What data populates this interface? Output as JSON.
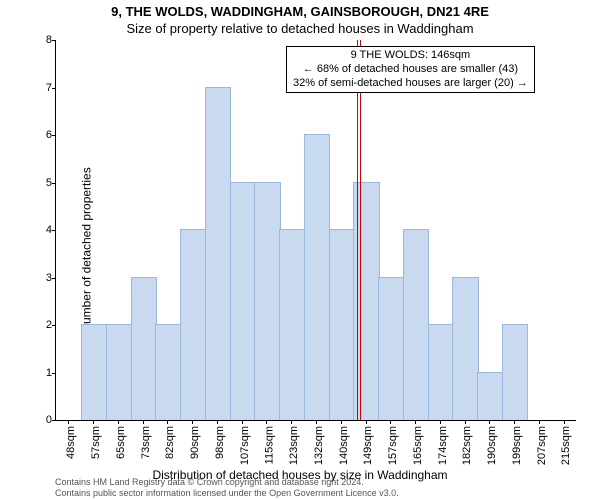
{
  "title_main": "9, THE WOLDS, WADDINGHAM, GAINSBOROUGH, DN21 4RE",
  "title_sub": "Size of property relative to detached houses in Waddingham",
  "ylabel": "Number of detached properties",
  "xlabel": "Distribution of detached houses by size in Waddingham",
  "chart": {
    "type": "bar",
    "categories": [
      "48sqm",
      "57sqm",
      "65sqm",
      "73sqm",
      "82sqm",
      "90sqm",
      "98sqm",
      "107sqm",
      "115sqm",
      "123sqm",
      "132sqm",
      "140sqm",
      "149sqm",
      "157sqm",
      "165sqm",
      "174sqm",
      "182sqm",
      "190sqm",
      "199sqm",
      "207sqm",
      "215sqm"
    ],
    "values": [
      0,
      2,
      2,
      3,
      2,
      4,
      7,
      5,
      5,
      4,
      6,
      4,
      5,
      3,
      4,
      2,
      3,
      1,
      2,
      0,
      0
    ],
    "bar_fill": "#c8d9f0",
    "bar_stroke": "#98b8e0",
    "background_color": "#ffffff",
    "ylim_min": 0,
    "ylim_max": 8,
    "ytick_step": 1,
    "bar_width_ratio": 0.98,
    "label_fontsize": 12,
    "tick_fontsize": 11,
    "title_fontsize": 13
  },
  "marker": {
    "line_color": "#cc0000",
    "x_index": 11.7
  },
  "infobox": {
    "line1": "9 THE WOLDS: 146sqm",
    "line2": "← 68% of detached houses are smaller (43)",
    "line3": "32% of semi-detached houses are larger (20) →"
  },
  "footer": {
    "line1": "Contains HM Land Registry data © Crown copyright and database right 2024.",
    "line2": "Contains public sector information licensed under the Open Government Licence v3.0."
  }
}
